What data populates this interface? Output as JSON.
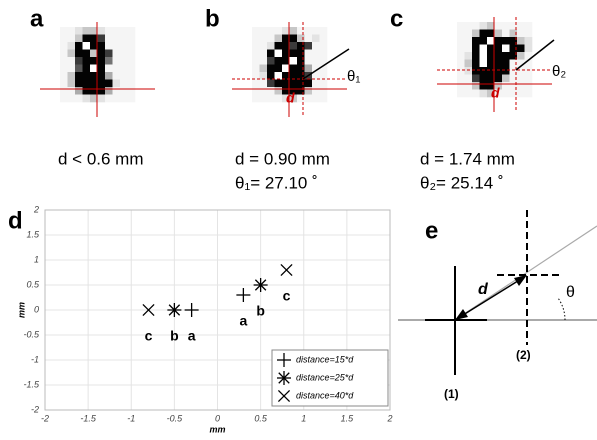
{
  "panels": [
    {
      "letter": "a",
      "lines": [
        "d < 0.6 mm"
      ],
      "image_labels": []
    },
    {
      "letter": "b",
      "lines": [
        "d = 0.90 mm",
        "θ₁= 27.10 ˚"
      ],
      "image_labels": [
        "θ₁",
        "d"
      ]
    },
    {
      "letter": "c",
      "lines": [
        "d = 1.74 mm",
        "θ₂= 25.14 ˚"
      ],
      "image_labels": [
        "θ₂",
        "d"
      ]
    }
  ],
  "chart_data": {
    "type": "scatter",
    "panel_letter": "d",
    "x_label": "mm",
    "y_label": "mm",
    "xlim": [
      -2,
      2
    ],
    "ylim": [
      -2,
      2
    ],
    "xticks": [
      -2,
      -1.5,
      -1,
      -0.5,
      0,
      0.5,
      1,
      1.5,
      2
    ],
    "yticks": [
      -2,
      -1.5,
      -1,
      -0.5,
      0,
      0.5,
      1,
      1.5,
      2
    ],
    "grid": true,
    "legend": "lower right",
    "series": [
      {
        "name": "distance=15*d",
        "marker": "plus",
        "color": "#000000",
        "x": [
          -0.3,
          0.3
        ],
        "values": [
          0,
          0.3
        ],
        "point_labels": [
          "a",
          "a"
        ]
      },
      {
        "name": "distance=25*d",
        "marker": "asterisk",
        "color": "#000000",
        "x": [
          -0.5,
          0.5
        ],
        "values": [
          0,
          0.5
        ],
        "point_labels": [
          "b",
          "b"
        ]
      },
      {
        "name": "distance=40*d",
        "marker": "cross",
        "color": "#000000",
        "x": [
          -0.8,
          0.8
        ],
        "values": [
          0,
          0.8
        ],
        "point_labels": [
          "c",
          "c"
        ]
      }
    ]
  },
  "diagram": {
    "letter": "e",
    "distance_label": "d",
    "angle_label": "θ",
    "point_1": "(1)",
    "point_2": "(2)"
  }
}
